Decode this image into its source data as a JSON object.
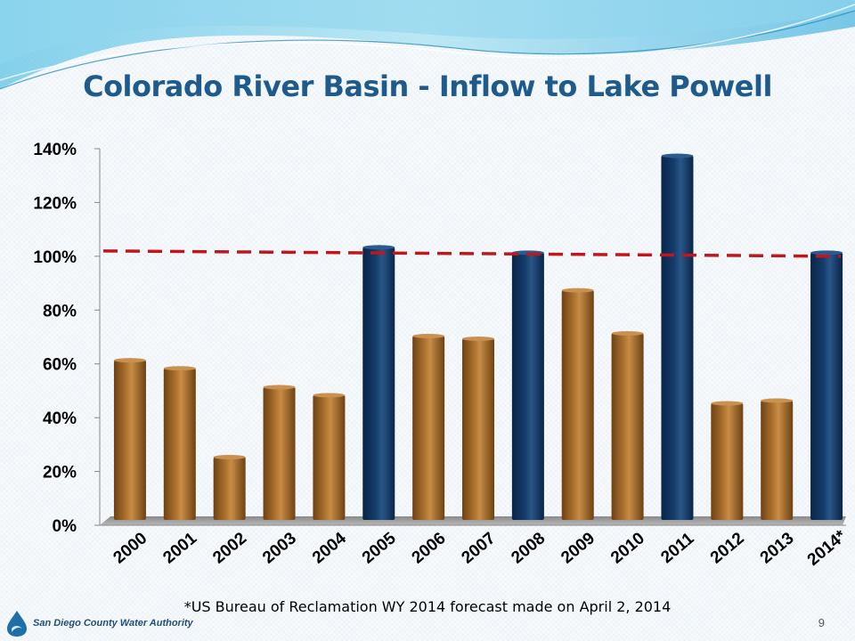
{
  "slide": {
    "title": "Colorado River Basin - Inflow to Lake Powell",
    "footnote": "*US Bureau of Reclamation WY 2014 forecast made on April 2, 2014",
    "logo_text": "San Diego County Water Authority",
    "page_number": "9"
  },
  "colors": {
    "bar_brown": "#a86f2c",
    "bar_navy": "#143c6a",
    "reference_line": "#c0161c",
    "title": "#1f5a8c"
  },
  "chart_data": {
    "type": "bar",
    "categories": [
      "2000",
      "2001",
      "2002",
      "2003",
      "2004",
      "2005",
      "2006",
      "2007",
      "2008",
      "2009",
      "2010",
      "2011",
      "2012",
      "2013",
      "2014*"
    ],
    "values": [
      62,
      59,
      26,
      52,
      49,
      104,
      71,
      70,
      102,
      88,
      72,
      138,
      46,
      47,
      102
    ],
    "highlight": [
      false,
      false,
      false,
      false,
      false,
      true,
      false,
      false,
      true,
      false,
      false,
      true,
      false,
      false,
      true
    ],
    "ylim": [
      0,
      140
    ],
    "yticks": [
      "0%",
      "20%",
      "40%",
      "60%",
      "80%",
      "100%",
      "120%",
      "140%"
    ],
    "ytick_values": [
      0,
      20,
      40,
      60,
      80,
      100,
      120,
      140
    ],
    "reference_line": {
      "style": "dashed",
      "value": 100
    },
    "grid": false,
    "xlabel": "",
    "ylabel": ""
  }
}
